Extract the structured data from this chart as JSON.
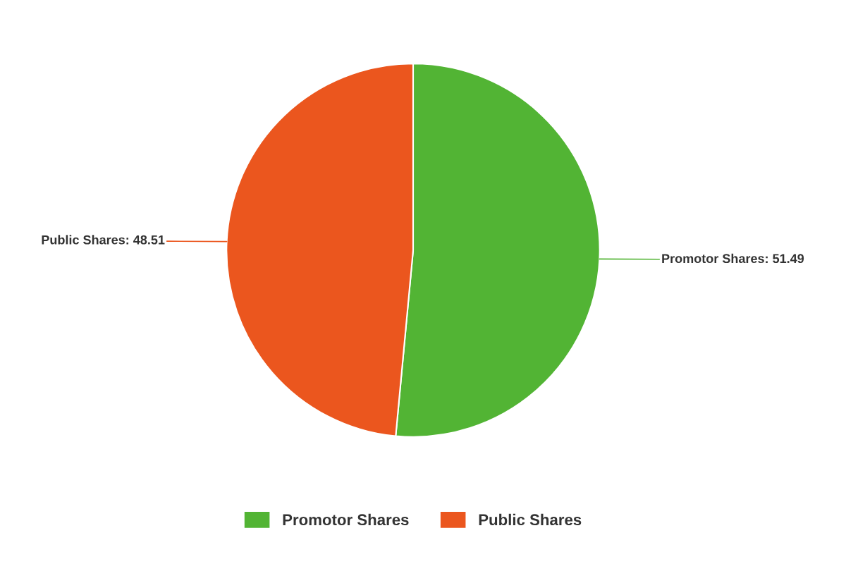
{
  "chart_data": {
    "type": "pie",
    "categories": [
      "Promotor Shares",
      "Public Shares"
    ],
    "values": [
      51.49,
      48.51
    ],
    "colors": [
      "#52b434",
      "#eb561e"
    ],
    "value_labels": [
      "Promotor Shares: 51.49",
      "Public Shares: 48.51"
    ],
    "legend": "bottom"
  }
}
